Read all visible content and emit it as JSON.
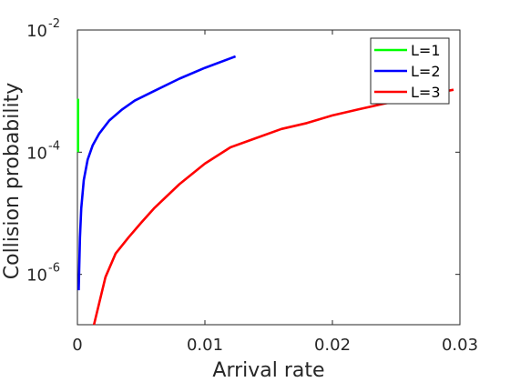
{
  "chart_data": {
    "type": "line",
    "title": "",
    "xlabel": "Arrival rate",
    "ylabel": "Collision probability",
    "xscale": "linear",
    "yscale": "log",
    "xlim": [
      0,
      0.03
    ],
    "ylim": [
      1.5e-07,
      0.01
    ],
    "xticks": [
      0,
      0.01,
      0.02,
      0.03
    ],
    "xtick_labels": [
      "0",
      "0.01",
      "0.02",
      "0.03"
    ],
    "yticks": [
      1e-06,
      0.0001,
      0.01
    ],
    "ytick_labels": [
      {
        "base": "10",
        "exp": "-6"
      },
      {
        "base": "10",
        "exp": "-4"
      },
      {
        "base": "10",
        "exp": "-2"
      }
    ],
    "grid": false,
    "legend_position": "top-right",
    "series": [
      {
        "name": "L=1",
        "color": "#00ff00",
        "x": [
          5e-05,
          5e-05
        ],
        "y": [
          0.0001,
          0.00075
        ]
      },
      {
        "name": "L=2",
        "color": "#0000ff",
        "x": [
          0.0001,
          0.0002,
          0.0003,
          0.0005,
          0.0008,
          0.0012,
          0.0017,
          0.0025,
          0.0035,
          0.0045,
          0.006,
          0.008,
          0.01,
          0.0124
        ],
        "y": [
          5.5e-07,
          4e-06,
          1.2e-05,
          3.5e-05,
          7.5e-05,
          0.00013,
          0.0002,
          0.00033,
          0.0005,
          0.0007,
          0.001,
          0.0016,
          0.0024,
          0.0037
        ]
      },
      {
        "name": "L=3",
        "color": "#ff0000",
        "x": [
          0.0013,
          0.0022,
          0.003,
          0.004,
          0.005,
          0.006,
          0.008,
          0.01,
          0.012,
          0.014,
          0.016,
          0.018,
          0.02,
          0.022,
          0.024,
          0.026,
          0.028,
          0.0295
        ],
        "y": [
          1.5e-07,
          9e-07,
          2.2e-06,
          4e-06,
          7e-06,
          1.2e-05,
          3e-05,
          6.5e-05,
          0.00012,
          0.00017,
          0.00024,
          0.0003,
          0.0004,
          0.0005,
          0.00062,
          0.00075,
          0.00092,
          0.00105
        ]
      }
    ]
  }
}
